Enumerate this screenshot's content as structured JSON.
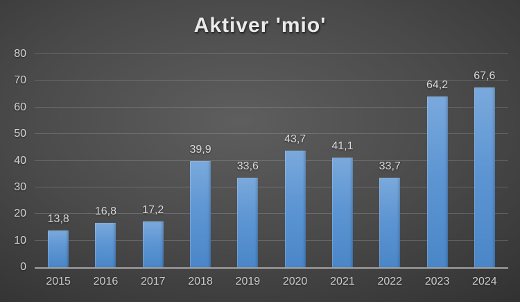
{
  "chart_data": {
    "type": "bar",
    "title": "Aktiver 'mio'",
    "categories": [
      "2015",
      "2016",
      "2017",
      "2018",
      "2019",
      "2020",
      "2021",
      "2022",
      "2023",
      "2024"
    ],
    "values": [
      13.8,
      16.8,
      17.2,
      39.9,
      33.6,
      43.7,
      41.1,
      33.7,
      64.2,
      67.6
    ],
    "value_labels": [
      "13,8",
      "16,8",
      "17,2",
      "39,9",
      "33,6",
      "43,7",
      "41,1",
      "33,7",
      "64,2",
      "67,6"
    ],
    "xlabel": "",
    "ylabel": "",
    "ylim": [
      0,
      80
    ],
    "ytick_step": 10,
    "ytick_labels": [
      "0",
      "10",
      "20",
      "30",
      "40",
      "50",
      "60",
      "70",
      "80"
    ],
    "grid": "horizontal",
    "legend": "none",
    "colors": {
      "bar_top": "#7aa9dc",
      "bar_bottom": "#4a86c8",
      "background_center": "#5e5e5e",
      "background_edge": "#212121",
      "gridline": "rgba(255,255,255,0.17)",
      "axis_line": "#a3a3a3",
      "text": "#d4d4d4",
      "title_text": "#eaeaea"
    }
  }
}
